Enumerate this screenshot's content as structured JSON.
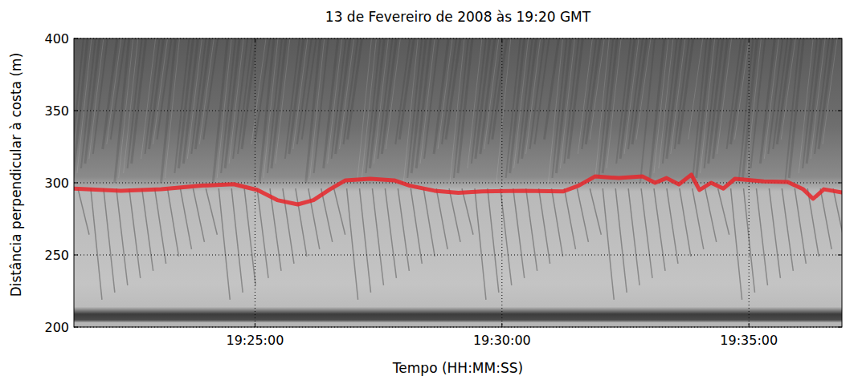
{
  "chart_data": {
    "type": "line",
    "title": "13 de Fevereiro de 2008 às 19:20 GMT",
    "x_label": "Tempo (HH:MM:SS)",
    "y_label": "Distância perpendicular à costa (m)",
    "x": [
      "19:21:20",
      "19:22:17",
      "19:23:06",
      "19:23:55",
      "19:24:34",
      "19:25:03",
      "19:25:27",
      "19:25:52",
      "19:26:11",
      "19:26:31",
      "19:26:50",
      "19:27:20",
      "19:27:49",
      "19:28:08",
      "19:28:38",
      "19:29:07",
      "19:29:36",
      "19:30:25",
      "19:31:14",
      "19:31:33",
      "19:31:53",
      "19:32:22",
      "19:32:51",
      "19:33:06",
      "19:33:20",
      "19:33:35",
      "19:33:50",
      "19:34:00",
      "19:34:14",
      "19:34:29",
      "19:34:43",
      "19:35:18",
      "19:35:47",
      "19:36:06",
      "19:36:18",
      "19:36:31",
      "19:36:53"
    ],
    "values": [
      296,
      294.5,
      295.5,
      298,
      299,
      295,
      288,
      285,
      288,
      295.5,
      301.7,
      302.8,
      301.7,
      298,
      294.5,
      293,
      294,
      294.5,
      294,
      298,
      304.4,
      303.3,
      304.4,
      300,
      303.3,
      298.9,
      305.6,
      295,
      300,
      296,
      302.8,
      301,
      300.5,
      295.5,
      288.9,
      295.5,
      293.3
    ],
    "color": "#e8262a",
    "xlim": [
      "19:21:20",
      "19:36:53"
    ],
    "xticks": [
      "19:25:00",
      "19:30:00",
      "19:35:00"
    ],
    "ylim": [
      200,
      400
    ],
    "yticks": [
      200,
      250,
      300,
      350,
      400
    ],
    "grid": true
  }
}
